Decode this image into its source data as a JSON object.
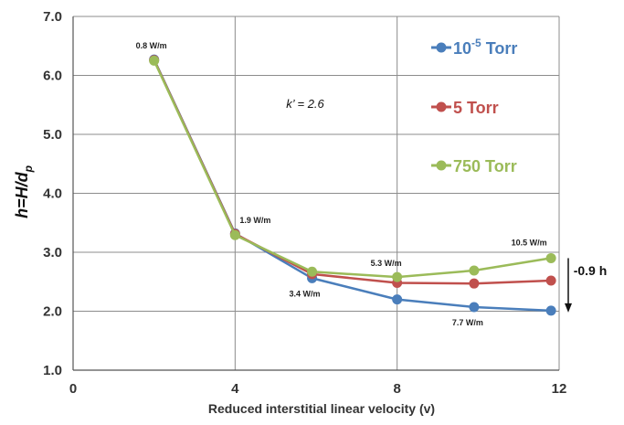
{
  "chart_data": {
    "type": "line",
    "title": "",
    "xlabel": "Reduced interstitial linear velocity (v)",
    "ylabel": {
      "base": "h=H/d",
      "subscript": "p"
    },
    "xlim": [
      0,
      12
    ],
    "ylim": [
      1.0,
      7.0
    ],
    "x_ticks": [
      "0",
      "4",
      "8",
      "12"
    ],
    "y_ticks": [
      "1.0",
      "2.0",
      "3.0",
      "4.0",
      "5.0",
      "6.0",
      "7.0"
    ],
    "grid": true,
    "series": [
      {
        "name": "10-5 Torr",
        "legend_base": "10",
        "legend_sup": "-5",
        "legend_rest": " Torr",
        "color": "#4a7ebb",
        "x": [
          2.0,
          4.0,
          5.9,
          8.0,
          9.9,
          11.8
        ],
        "y": [
          6.27,
          3.32,
          2.56,
          2.2,
          2.07,
          2.01
        ]
      },
      {
        "name": "5 Torr",
        "legend_base": "5 Torr",
        "color": "#c0504d",
        "x": [
          2.0,
          4.0,
          5.9,
          8.0,
          9.9,
          11.8
        ],
        "y": [
          6.26,
          3.31,
          2.63,
          2.48,
          2.47,
          2.52
        ]
      },
      {
        "name": "750 Torr",
        "legend_base": "750 Torr",
        "color": "#9bbb59",
        "x": [
          2.0,
          4.0,
          5.9,
          8.0,
          9.9,
          11.8
        ],
        "y": [
          6.25,
          3.29,
          2.67,
          2.58,
          2.69,
          2.9
        ]
      }
    ],
    "annotations": {
      "power_labels": [
        "0.8 W/m",
        "1.9 W/m",
        "3.4 W/m",
        "5.3 W/m",
        "7.7 W/m",
        "10.5 W/m"
      ],
      "k_prime": "k’ = 2.6",
      "delta_h": "-0.9 h"
    }
  }
}
